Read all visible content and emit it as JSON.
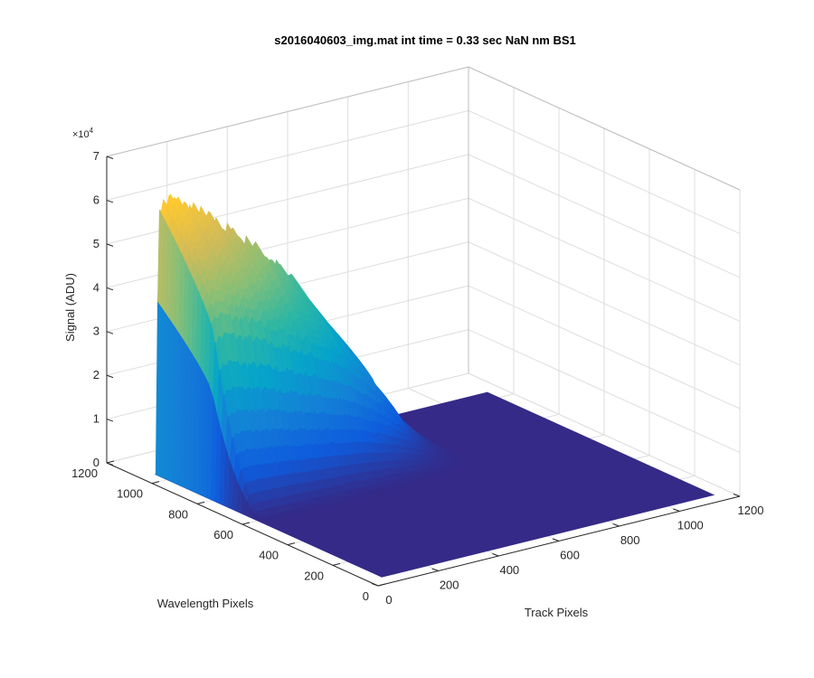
{
  "chart_data": {
    "type": "surface",
    "title": "s2016040603_img.mat int time = 0.33 sec  NaN nm BS1",
    "xlabel": "Track Pixels",
    "ylabel": "Wavelength Pixels",
    "zlabel": "Signal (ADU)",
    "z_exponent_label": "×10",
    "z_exponent": "4",
    "xlim": [
      0,
      1200
    ],
    "ylim": [
      0,
      1200
    ],
    "zlim": [
      0,
      70000
    ],
    "x_ticks": [
      "0",
      "200",
      "400",
      "600",
      "800",
      "1000",
      "1200"
    ],
    "y_ticks": [
      "0",
      "200",
      "400",
      "600",
      "800",
      "1000",
      "1200"
    ],
    "z_ticks": [
      "0",
      "1",
      "2",
      "3",
      "4",
      "5",
      "6",
      "7"
    ],
    "grid": true,
    "colormap": [
      "#352a87",
      "#0f5cdd",
      "#1481d6",
      "#06a4ca",
      "#2eb7a4",
      "#87bf77",
      "#d1bb59",
      "#fec832",
      "#f9fb0e"
    ],
    "plane_color": "#352a87",
    "surface_extent": {
      "x": [
        50,
        1150
      ],
      "y": [
        50,
        1050
      ]
    },
    "peak_profile": {
      "x": [
        50,
        60,
        100,
        200,
        300,
        400,
        500,
        600,
        650,
        700,
        750,
        800
      ],
      "z_max": [
        0,
        61000,
        62000,
        57000,
        51000,
        45000,
        37000,
        26000,
        18000,
        10000,
        4000,
        0
      ]
    },
    "peak_y_range": [
      810,
      1050
    ],
    "tail_y_range": [
      560,
      810
    ]
  }
}
